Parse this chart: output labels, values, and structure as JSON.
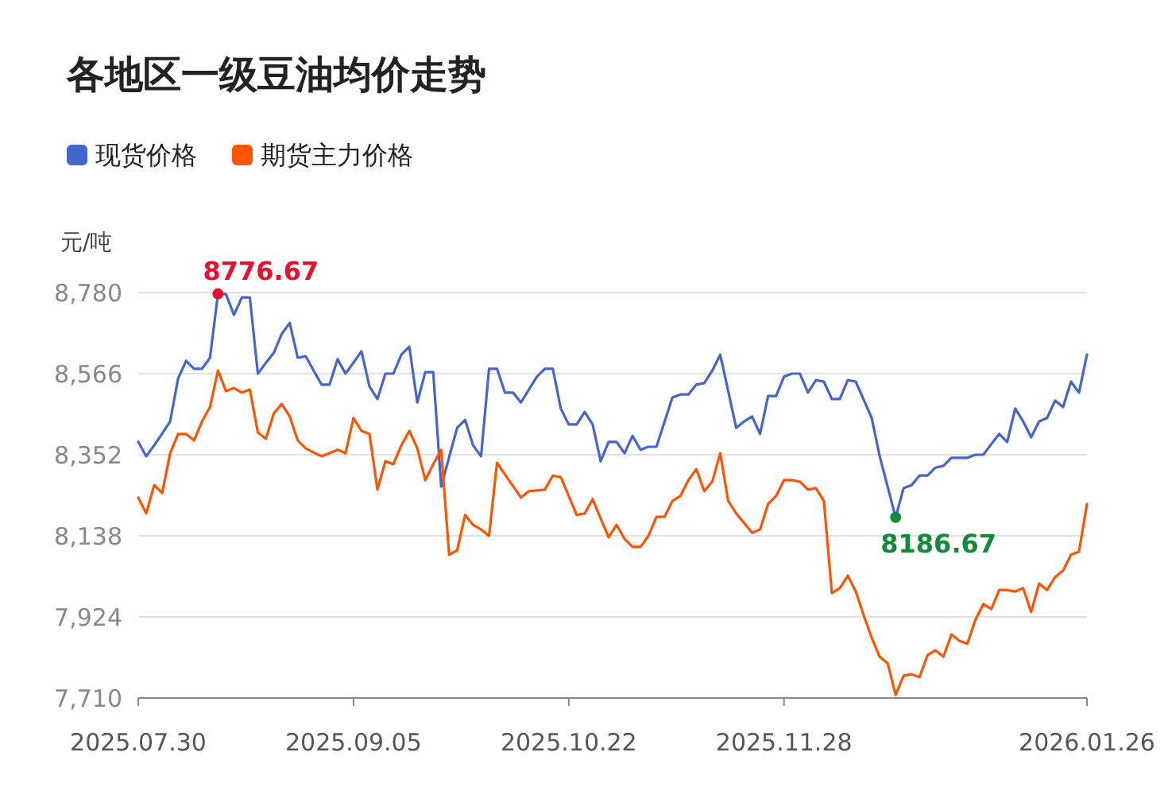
{
  "chart_data": {
    "type": "line",
    "title": "各地区一级豆油均价走势",
    "ylabel": "元/吨",
    "legend": "top left",
    "grid": "y",
    "marker": "none",
    "categories": [
      "2025.07.30",
      null,
      null,
      null,
      null,
      null,
      null,
      null,
      null,
      null,
      null,
      null,
      null,
      null,
      null,
      null,
      null,
      null,
      null,
      null,
      null,
      null,
      null,
      null,
      null,
      null,
      null,
      "2025.09.05",
      null,
      null,
      null,
      null,
      null,
      null,
      null,
      null,
      null,
      null,
      null,
      null,
      null,
      null,
      null,
      null,
      null,
      null,
      null,
      null,
      null,
      null,
      null,
      null,
      null,
      null,
      "2025.10.22",
      null,
      null,
      null,
      null,
      null,
      null,
      null,
      null,
      null,
      null,
      null,
      null,
      null,
      null,
      null,
      null,
      null,
      null,
      null,
      null,
      null,
      null,
      null,
      null,
      null,
      null,
      "2025.11.28",
      null,
      null,
      null,
      null,
      null,
      null,
      null,
      null,
      null,
      null,
      null,
      null,
      null,
      null,
      null,
      null,
      null,
      null,
      null,
      null,
      null,
      null,
      null,
      null,
      null,
      null,
      null,
      null,
      null,
      null,
      null,
      null,
      null,
      null,
      null,
      null,
      null,
      "2026.01.26"
    ],
    "ylim": [
      7710,
      8780
    ],
    "yticks": [
      {
        "value": 7710,
        "label": "7,710"
      },
      {
        "value": 7924,
        "label": "7,924"
      },
      {
        "value": 8138,
        "label": "8,138"
      },
      {
        "value": 8352,
        "label": "8,352"
      },
      {
        "value": 8566,
        "label": "8,566"
      },
      {
        "value": 8780,
        "label": "8,780"
      }
    ],
    "series": [
      {
        "name": "现货价格",
        "color": "#4466cc",
        "values": [
          8386,
          8348,
          8377,
          8408,
          8440,
          8553,
          8600,
          8579,
          8579,
          8608,
          8776.67,
          8776,
          8721,
          8767,
          8767,
          8566,
          8594,
          8621,
          8671,
          8700,
          8608,
          8612,
          8574,
          8537,
          8537,
          8604,
          8566,
          8595,
          8625,
          8532,
          8499,
          8566,
          8566,
          8616,
          8637,
          8490,
          8570,
          8570,
          8268,
          8346,
          8423,
          8444,
          8377,
          8348,
          8579,
          8579,
          8516,
          8516,
          8490,
          8524,
          8558,
          8579,
          8579,
          8474,
          8432,
          8432,
          8465,
          8432,
          8335,
          8386,
          8386,
          8356,
          8402,
          8365,
          8373,
          8373,
          8438,
          8503,
          8511,
          8511,
          8537,
          8541,
          8574,
          8616,
          8520,
          8423,
          8440,
          8453,
          8407,
          8507,
          8507,
          8558,
          8566,
          8566,
          8516,
          8549,
          8545,
          8499,
          8499,
          8549,
          8545,
          8497,
          8449,
          8348,
          8268,
          8186.67,
          8264,
          8272,
          8297,
          8297,
          8318,
          8323,
          8344,
          8344,
          8344,
          8352,
          8352,
          8380,
          8407,
          8386,
          8474,
          8440,
          8398,
          8440,
          8449,
          8495,
          8478,
          8545,
          8516,
          8616
        ]
      },
      {
        "name": "期货主力价格",
        "color": "#ff5500",
        "values": [
          8239,
          8197,
          8272,
          8251,
          8356,
          8407,
          8407,
          8390,
          8440,
          8478,
          8574,
          8520,
          8528,
          8516,
          8524,
          8411,
          8394,
          8461,
          8486,
          8453,
          8390,
          8369,
          8358,
          8348,
          8356,
          8365,
          8356,
          8449,
          8415,
          8407,
          8260,
          8335,
          8327,
          8377,
          8415,
          8369,
          8285,
          8327,
          8365,
          8088,
          8100,
          8193,
          8167,
          8155,
          8138,
          8331,
          8300,
          8270,
          8239,
          8256,
          8258,
          8260,
          8297,
          8293,
          8243,
          8193,
          8197,
          8235,
          8184,
          8134,
          8167,
          8130,
          8109,
          8109,
          8138,
          8188,
          8188,
          8230,
          8243,
          8285,
          8314,
          8256,
          8281,
          8356,
          8230,
          8197,
          8172,
          8146,
          8155,
          8222,
          8243,
          8285,
          8285,
          8281,
          8260,
          8264,
          8230,
          7987,
          8000,
          8033,
          7991,
          7928,
          7869,
          7819,
          7802,
          7718,
          7769,
          7773,
          7765,
          7823,
          7836,
          7819,
          7878,
          7861,
          7853,
          7916,
          7958,
          7945,
          7995,
          7995,
          7991,
          8000,
          7937,
          8012,
          7995,
          8029,
          8046,
          8088,
          8096,
          8222
        ]
      }
    ],
    "annotations": [
      "8776.67",
      "8186.67"
    ]
  }
}
